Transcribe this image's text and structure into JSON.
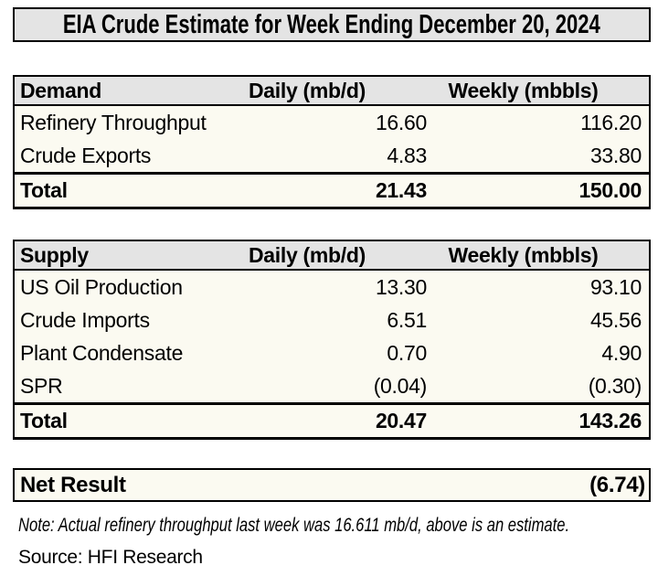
{
  "title": "EIA Crude Estimate for Week Ending December 20, 2024",
  "demand_table": {
    "headers": {
      "category": "Demand",
      "daily": "Daily (mb/d)",
      "weekly": "Weekly (mbbls)"
    },
    "rows": [
      {
        "label": "Refinery Throughput",
        "daily": "16.60",
        "weekly": "116.20"
      },
      {
        "label": "Crude Exports",
        "daily": "4.83",
        "weekly": "33.80"
      }
    ],
    "total": {
      "label": "Total",
      "daily": "21.43",
      "weekly": "150.00"
    }
  },
  "supply_table": {
    "headers": {
      "category": "Supply",
      "daily": "Daily (mb/d)",
      "weekly": "Weekly (mbbls)"
    },
    "rows": [
      {
        "label": "US Oil Production",
        "daily": "13.30",
        "weekly": "93.10"
      },
      {
        "label": "Crude Imports",
        "daily": "6.51",
        "weekly": "45.56"
      },
      {
        "label": "Plant Condensate",
        "daily": "0.70",
        "weekly": "4.90"
      },
      {
        "label": "SPR",
        "daily": "(0.04)",
        "weekly": "(0.30)"
      }
    ],
    "total": {
      "label": "Total",
      "daily": "20.47",
      "weekly": "143.26"
    }
  },
  "net_result": {
    "label": "Net Result",
    "value": "(6.74)"
  },
  "note": "Note: Actual refinery throughput last week was 16.611 mb/d, above is an estimate.",
  "source": "Source: HFI Research",
  "colors": {
    "header_bg": "#E4E4E4",
    "body_bg": "#FBFAF1",
    "border": "#000000",
    "page_bg": "#FFFFFF"
  },
  "chart_data": [
    {
      "type": "table",
      "title": "EIA Crude Estimate for Week Ending December 20, 2024",
      "section": "Demand",
      "columns": [
        "Demand",
        "Daily (mb/d)",
        "Weekly (mbbls)"
      ],
      "rows": [
        [
          "Refinery Throughput",
          16.6,
          116.2
        ],
        [
          "Crude Exports",
          4.83,
          33.8
        ],
        [
          "Total",
          21.43,
          150.0
        ]
      ]
    },
    {
      "type": "table",
      "section": "Supply",
      "columns": [
        "Supply",
        "Daily (mb/d)",
        "Weekly (mbbls)"
      ],
      "rows": [
        [
          "US Oil Production",
          13.3,
          93.1
        ],
        [
          "Crude Imports",
          6.51,
          45.56
        ],
        [
          "Plant Condensate",
          0.7,
          4.9
        ],
        [
          "SPR",
          -0.04,
          -0.3
        ],
        [
          "Total",
          20.47,
          143.26
        ]
      ]
    },
    {
      "type": "table",
      "section": "Net Result",
      "columns": [
        "Net Result",
        "Weekly (mbbls)"
      ],
      "rows": [
        [
          "Net Result",
          -6.74
        ]
      ]
    }
  ]
}
